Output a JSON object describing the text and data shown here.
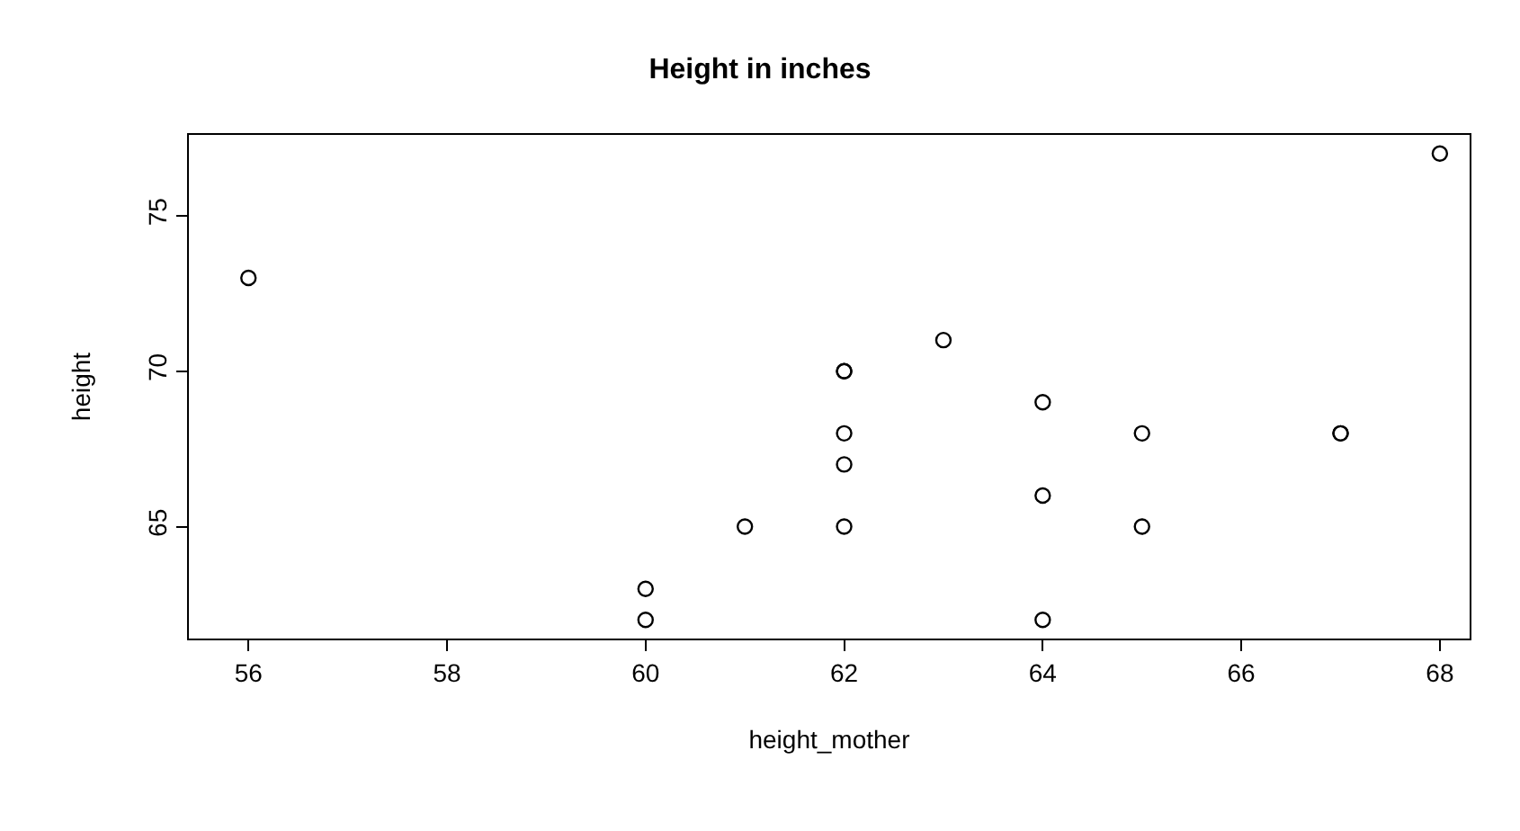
{
  "chart_data": {
    "type": "scatter",
    "title": "Height in inches",
    "xlabel": "height_mother",
    "ylabel": "height",
    "x": [
      56,
      60,
      60,
      61,
      62,
      62,
      62,
      62,
      62,
      63,
      64,
      64,
      64,
      65,
      65,
      67,
      67,
      68
    ],
    "values": [
      73,
      63,
      62,
      65,
      70,
      70,
      68,
      67,
      65,
      71,
      69,
      66,
      62,
      68,
      65,
      68,
      68,
      77
    ],
    "color": "#000000",
    "marker": "circle",
    "legend": false,
    "xlim": [
      55.4,
      68.3
    ],
    "ylim": [
      61.4,
      77.6
    ],
    "xticks": [
      56,
      58,
      60,
      62,
      64,
      66,
      68
    ],
    "yticks": [
      65,
      70,
      75
    ]
  }
}
